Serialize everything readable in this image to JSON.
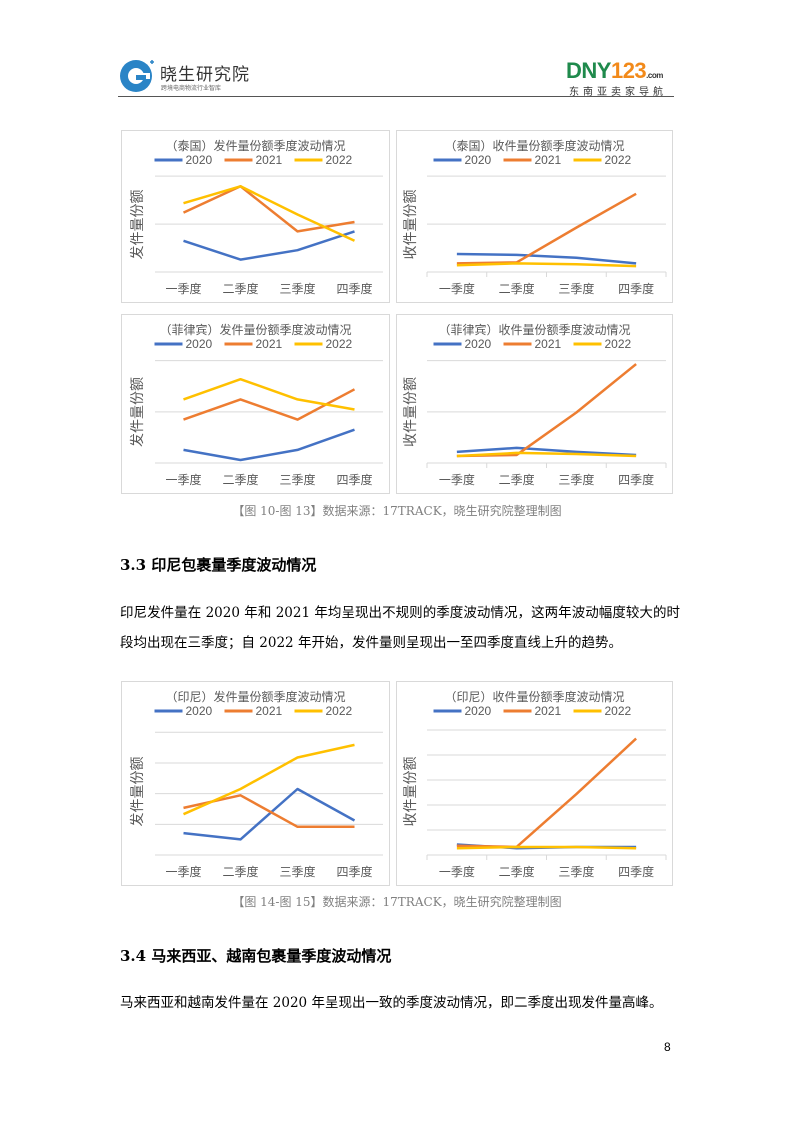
{
  "header": {
    "left_logo": {
      "title": "晓生研究院",
      "subtitle": "跨境电商物流行业智库",
      "mark": "G"
    },
    "right_logo": {
      "brand_dny": "DNY",
      "brand_num": "123",
      "brand_tld": ".com",
      "subtitle": "东南亚卖家导航"
    }
  },
  "colors": {
    "2020": "#4472c4",
    "2021": "#ed7d31",
    "2022": "#ffc000",
    "grid": "#d9d9d9",
    "axis_text": "#595959"
  },
  "captions": {
    "fig10_13": "【图 10-图 13】数据来源：17TRACK，晓生研究院整理制图",
    "fig14_15": "【图 14-图 15】数据来源：17TRACK，晓生研究院整理制图"
  },
  "sections": [
    {
      "title": "3.3 印尼包裹量季度波动情况",
      "paragraph": "印尼发件量在 2020 年和 2021 年均呈现出不规则的季度波动情况，这两年波动幅度较大的时段均出现在三季度；自 2022 年开始，发件量则呈现出一至四季度直线上升的趋势。"
    },
    {
      "title": "3.4 马来西亚、越南包裹量季度波动情况",
      "paragraph": "马来西亚和越南发件量在 2020 年呈现出一致的季度波动情况，即二季度出现发件量高峰。"
    }
  ],
  "page_number": "8",
  "chart_data": [
    {
      "type": "line",
      "title": "（泰国）发件量份额季度波动情况",
      "xlabel": "",
      "ylabel": "发件量份额",
      "categories": [
        "一季度",
        "二季度",
        "三季度",
        "四季度"
      ],
      "grid": true,
      "gridlines": 3,
      "legend_position": "top",
      "ylim": [
        0,
        100
      ],
      "series": [
        {
          "name": "2020",
          "values": [
            30,
            10,
            20,
            40
          ]
        },
        {
          "name": "2021",
          "values": [
            60,
            88,
            40,
            50
          ]
        },
        {
          "name": "2022",
          "values": [
            70,
            88,
            58,
            30
          ]
        }
      ]
    },
    {
      "type": "line",
      "title": "（泰国）收件量份额季度波动情况",
      "xlabel": "",
      "ylabel": "收件量份额",
      "categories": [
        "一季度",
        "二季度",
        "三季度",
        "四季度"
      ],
      "grid": true,
      "gridlines": 3,
      "legend_position": "top",
      "ylim": [
        0,
        100
      ],
      "series": [
        {
          "name": "2020",
          "values": [
            16,
            15,
            12,
            6
          ]
        },
        {
          "name": "2021",
          "values": [
            6,
            7,
            44,
            80
          ]
        },
        {
          "name": "2022",
          "values": [
            4,
            6,
            5,
            3
          ]
        }
      ]
    },
    {
      "type": "line",
      "title": "（菲律宾）发件量份额季度波动情况",
      "xlabel": "",
      "ylabel": "发件量份额",
      "categories": [
        "一季度",
        "二季度",
        "三季度",
        "四季度"
      ],
      "grid": true,
      "gridlines": 3,
      "legend_position": "top",
      "ylim": [
        0,
        100
      ],
      "series": [
        {
          "name": "2020",
          "values": [
            10,
            0,
            10,
            30
          ]
        },
        {
          "name": "2021",
          "values": [
            40,
            60,
            40,
            70
          ]
        },
        {
          "name": "2022",
          "values": [
            60,
            80,
            60,
            50
          ]
        }
      ]
    },
    {
      "type": "line",
      "title": "（菲律宾）收件量份额季度波动情况",
      "xlabel": "",
      "ylabel": "收件量份额",
      "categories": [
        "一季度",
        "二季度",
        "三季度",
        "四季度"
      ],
      "grid": true,
      "gridlines": 3,
      "legend_position": "top",
      "ylim": [
        0,
        100
      ],
      "series": [
        {
          "name": "2020",
          "values": [
            8,
            12,
            8,
            5
          ]
        },
        {
          "name": "2021",
          "values": [
            4,
            5,
            47,
            95
          ]
        },
        {
          "name": "2022",
          "values": [
            4,
            7,
            6,
            4
          ]
        }
      ]
    },
    {
      "type": "line",
      "title": "（印尼）发件量份额季度波动情况",
      "xlabel": "",
      "ylabel": "发件量份额",
      "categories": [
        "一季度",
        "二季度",
        "三季度",
        "四季度"
      ],
      "grid": true,
      "gridlines": 5,
      "legend_position": "top",
      "ylim": [
        0,
        100
      ],
      "series": [
        {
          "name": "2020",
          "values": [
            15,
            10,
            50,
            25
          ]
        },
        {
          "name": "2021",
          "values": [
            35,
            45,
            20,
            20
          ]
        },
        {
          "name": "2022",
          "values": [
            30,
            50,
            75,
            85
          ]
        }
      ]
    },
    {
      "type": "line",
      "title": "（印尼）收件量份额季度波动情况",
      "xlabel": "",
      "ylabel": "收件量份额",
      "categories": [
        "一季度",
        "二季度",
        "三季度",
        "四季度"
      ],
      "grid": true,
      "gridlines": 6,
      "legend_position": "top",
      "ylim": [
        0,
        100
      ],
      "series": [
        {
          "name": "2020",
          "values": [
            6,
            3,
            4,
            4
          ]
        },
        {
          "name": "2021",
          "values": [
            5,
            4,
            46,
            90
          ]
        },
        {
          "name": "2022",
          "values": [
            3,
            4,
            4,
            3
          ]
        }
      ]
    }
  ]
}
